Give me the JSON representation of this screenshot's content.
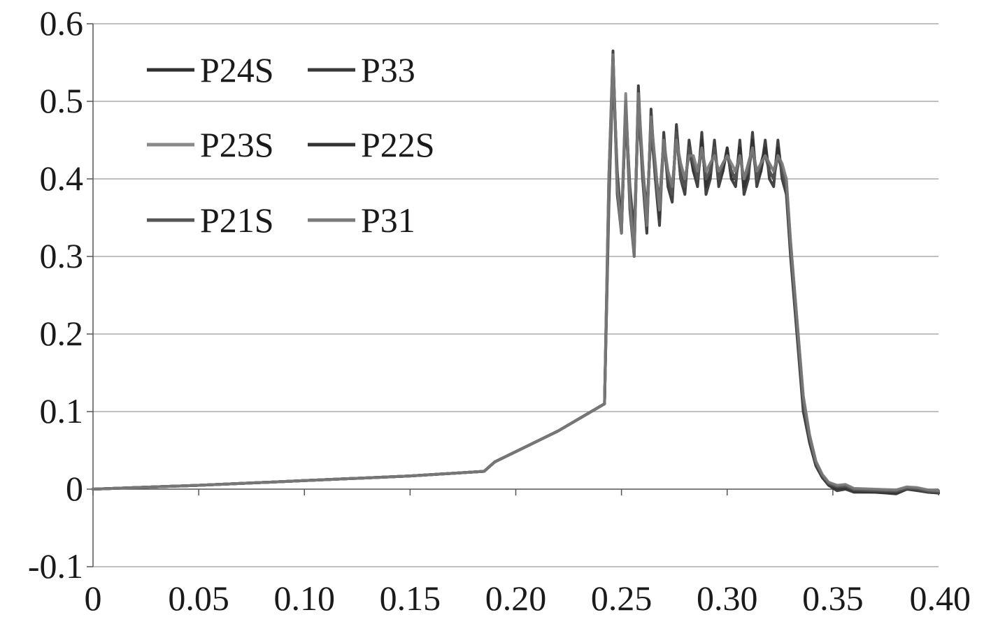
{
  "chart_data": {
    "type": "line",
    "title": "",
    "xlabel": "",
    "ylabel": "",
    "xlim": [
      0,
      0.4
    ],
    "ylim": [
      -0.1,
      0.6
    ],
    "grid": "horizontal",
    "legend_position": "top-left",
    "x_tick_labels": [
      "0",
      "0.05",
      "0.10",
      "0.15",
      "0.20",
      "0.25",
      "0.30",
      "0.35",
      "0.40"
    ],
    "x_ticks": [
      0,
      0.05,
      0.1,
      0.15,
      0.2,
      0.25,
      0.3,
      0.35,
      0.4
    ],
    "y_tick_labels": [
      "-0.1",
      "0",
      "0.1",
      "0.2",
      "0.3",
      "0.4",
      "0.5",
      "0.6"
    ],
    "y_ticks": [
      -0.1,
      0,
      0.1,
      0.2,
      0.3,
      0.4,
      0.5,
      0.6
    ],
    "colors": {
      "axis": "#555555",
      "grid": "#9a9a9a",
      "text": "#1a1a1a"
    },
    "series": [
      {
        "name": "P24S",
        "color": "#2f2f2f",
        "x": [
          0,
          0.05,
          0.1,
          0.15,
          0.185,
          0.19,
          0.22,
          0.242,
          0.244,
          0.246,
          0.248,
          0.25,
          0.252,
          0.254,
          0.256,
          0.258,
          0.26,
          0.262,
          0.264,
          0.266,
          0.268,
          0.27,
          0.272,
          0.274,
          0.276,
          0.278,
          0.28,
          0.282,
          0.284,
          0.286,
          0.288,
          0.29,
          0.292,
          0.294,
          0.296,
          0.298,
          0.3,
          0.302,
          0.304,
          0.306,
          0.308,
          0.31,
          0.312,
          0.314,
          0.316,
          0.318,
          0.32,
          0.322,
          0.324,
          0.326,
          0.328,
          0.33,
          0.333,
          0.336,
          0.339,
          0.342,
          0.345,
          0.348,
          0.352,
          0.356,
          0.36,
          0.37,
          0.38,
          0.385,
          0.39,
          0.395,
          0.4
        ],
        "y": [
          0,
          0.005,
          0.011,
          0.017,
          0.023,
          0.035,
          0.075,
          0.11,
          0.4,
          0.565,
          0.38,
          0.33,
          0.5,
          0.36,
          0.3,
          0.52,
          0.4,
          0.33,
          0.49,
          0.4,
          0.34,
          0.46,
          0.39,
          0.37,
          0.47,
          0.4,
          0.38,
          0.45,
          0.41,
          0.39,
          0.46,
          0.38,
          0.4,
          0.45,
          0.39,
          0.41,
          0.44,
          0.4,
          0.39,
          0.45,
          0.38,
          0.4,
          0.46,
          0.39,
          0.41,
          0.45,
          0.4,
          0.39,
          0.45,
          0.4,
          0.38,
          0.3,
          0.2,
          0.1,
          0.06,
          0.03,
          0.015,
          0.005,
          -0.002,
          0.0,
          -0.004,
          -0.004,
          -0.006,
          0.0,
          -0.002,
          -0.004,
          -0.005
        ]
      },
      {
        "name": "P33",
        "color": "#3a3a3a",
        "x": [
          0,
          0.05,
          0.1,
          0.15,
          0.185,
          0.19,
          0.22,
          0.242,
          0.244,
          0.246,
          0.248,
          0.25,
          0.252,
          0.254,
          0.256,
          0.258,
          0.26,
          0.262,
          0.264,
          0.266,
          0.268,
          0.27,
          0.272,
          0.274,
          0.276,
          0.278,
          0.28,
          0.282,
          0.284,
          0.286,
          0.288,
          0.29,
          0.292,
          0.294,
          0.296,
          0.298,
          0.3,
          0.302,
          0.304,
          0.306,
          0.308,
          0.31,
          0.312,
          0.314,
          0.316,
          0.318,
          0.32,
          0.322,
          0.324,
          0.326,
          0.328,
          0.33,
          0.333,
          0.336,
          0.339,
          0.342,
          0.345,
          0.348,
          0.352,
          0.356,
          0.36,
          0.37,
          0.38,
          0.385,
          0.39,
          0.395,
          0.4
        ],
        "y": [
          0,
          0.005,
          0.011,
          0.017,
          0.023,
          0.035,
          0.075,
          0.11,
          0.38,
          0.56,
          0.4,
          0.34,
          0.49,
          0.37,
          0.31,
          0.51,
          0.41,
          0.34,
          0.48,
          0.41,
          0.35,
          0.45,
          0.4,
          0.38,
          0.46,
          0.41,
          0.39,
          0.44,
          0.42,
          0.4,
          0.45,
          0.39,
          0.41,
          0.44,
          0.4,
          0.42,
          0.43,
          0.41,
          0.4,
          0.44,
          0.39,
          0.41,
          0.45,
          0.4,
          0.42,
          0.44,
          0.41,
          0.4,
          0.44,
          0.41,
          0.39,
          0.31,
          0.21,
          0.11,
          0.06,
          0.03,
          0.015,
          0.006,
          0.002,
          0.004,
          -0.002,
          -0.003,
          -0.004,
          0.001,
          0.0,
          -0.003,
          -0.004
        ]
      },
      {
        "name": "P23S",
        "color": "#8a8a8a",
        "x": [
          0,
          0.05,
          0.1,
          0.15,
          0.185,
          0.19,
          0.22,
          0.242,
          0.244,
          0.246,
          0.248,
          0.25,
          0.252,
          0.254,
          0.256,
          0.258,
          0.26,
          0.262,
          0.264,
          0.266,
          0.268,
          0.27,
          0.272,
          0.274,
          0.276,
          0.278,
          0.28,
          0.282,
          0.284,
          0.286,
          0.288,
          0.29,
          0.292,
          0.294,
          0.296,
          0.298,
          0.3,
          0.302,
          0.304,
          0.306,
          0.308,
          0.31,
          0.312,
          0.314,
          0.316,
          0.318,
          0.32,
          0.322,
          0.324,
          0.326,
          0.328,
          0.33,
          0.333,
          0.336,
          0.339,
          0.342,
          0.345,
          0.348,
          0.352,
          0.356,
          0.36,
          0.37,
          0.38,
          0.385,
          0.39,
          0.395,
          0.4
        ],
        "y": [
          0,
          0.005,
          0.011,
          0.017,
          0.023,
          0.035,
          0.075,
          0.11,
          0.39,
          0.55,
          0.39,
          0.35,
          0.5,
          0.38,
          0.32,
          0.5,
          0.42,
          0.35,
          0.47,
          0.42,
          0.36,
          0.44,
          0.41,
          0.39,
          0.45,
          0.42,
          0.4,
          0.43,
          0.42,
          0.41,
          0.44,
          0.4,
          0.42,
          0.43,
          0.41,
          0.42,
          0.43,
          0.41,
          0.41,
          0.43,
          0.4,
          0.42,
          0.44,
          0.41,
          0.42,
          0.43,
          0.42,
          0.41,
          0.43,
          0.41,
          0.4,
          0.32,
          0.22,
          0.12,
          0.07,
          0.035,
          0.018,
          0.008,
          0.004,
          0.005,
          0.0,
          -0.001,
          -0.002,
          0.002,
          0.001,
          -0.002,
          -0.003
        ]
      },
      {
        "name": "P22S",
        "color": "#333333",
        "x": [
          0,
          0.05,
          0.1,
          0.15,
          0.185,
          0.19,
          0.22,
          0.242,
          0.244,
          0.246,
          0.248,
          0.25,
          0.252,
          0.254,
          0.256,
          0.258,
          0.26,
          0.262,
          0.264,
          0.266,
          0.268,
          0.27,
          0.272,
          0.274,
          0.276,
          0.278,
          0.28,
          0.282,
          0.284,
          0.286,
          0.288,
          0.29,
          0.292,
          0.294,
          0.296,
          0.298,
          0.3,
          0.302,
          0.304,
          0.306,
          0.308,
          0.31,
          0.312,
          0.314,
          0.316,
          0.318,
          0.32,
          0.322,
          0.324,
          0.326,
          0.328,
          0.33,
          0.333,
          0.336,
          0.339,
          0.342,
          0.345,
          0.348,
          0.352,
          0.356,
          0.36,
          0.37,
          0.38,
          0.385,
          0.39,
          0.395,
          0.4
        ],
        "y": [
          0,
          0.005,
          0.011,
          0.017,
          0.023,
          0.035,
          0.075,
          0.11,
          0.37,
          0.54,
          0.41,
          0.34,
          0.49,
          0.39,
          0.33,
          0.49,
          0.41,
          0.36,
          0.46,
          0.41,
          0.37,
          0.45,
          0.4,
          0.38,
          0.46,
          0.4,
          0.39,
          0.44,
          0.41,
          0.4,
          0.45,
          0.39,
          0.41,
          0.44,
          0.4,
          0.41,
          0.44,
          0.4,
          0.4,
          0.44,
          0.39,
          0.41,
          0.45,
          0.4,
          0.41,
          0.44,
          0.41,
          0.4,
          0.44,
          0.41,
          0.39,
          0.31,
          0.21,
          0.11,
          0.065,
          0.032,
          0.016,
          0.006,
          0.001,
          0.003,
          -0.003,
          -0.004,
          -0.005,
          0.0,
          -0.001,
          -0.004,
          -0.005
        ]
      },
      {
        "name": "P21S",
        "color": "#555555",
        "x": [
          0,
          0.05,
          0.1,
          0.15,
          0.185,
          0.19,
          0.22,
          0.242,
          0.244,
          0.246,
          0.248,
          0.25,
          0.252,
          0.254,
          0.256,
          0.258,
          0.26,
          0.262,
          0.264,
          0.266,
          0.268,
          0.27,
          0.272,
          0.274,
          0.276,
          0.278,
          0.28,
          0.282,
          0.284,
          0.286,
          0.288,
          0.29,
          0.292,
          0.294,
          0.296,
          0.298,
          0.3,
          0.302,
          0.304,
          0.306,
          0.308,
          0.31,
          0.312,
          0.314,
          0.316,
          0.318,
          0.32,
          0.322,
          0.324,
          0.326,
          0.328,
          0.33,
          0.333,
          0.336,
          0.339,
          0.342,
          0.345,
          0.348,
          0.352,
          0.356,
          0.36,
          0.37,
          0.38,
          0.385,
          0.39,
          0.395,
          0.4
        ],
        "y": [
          0,
          0.005,
          0.011,
          0.017,
          0.023,
          0.035,
          0.075,
          0.11,
          0.36,
          0.55,
          0.4,
          0.33,
          0.5,
          0.38,
          0.31,
          0.5,
          0.4,
          0.35,
          0.47,
          0.4,
          0.36,
          0.45,
          0.4,
          0.38,
          0.46,
          0.4,
          0.39,
          0.44,
          0.42,
          0.4,
          0.44,
          0.4,
          0.41,
          0.44,
          0.4,
          0.42,
          0.43,
          0.41,
          0.4,
          0.43,
          0.4,
          0.41,
          0.44,
          0.4,
          0.42,
          0.43,
          0.41,
          0.4,
          0.43,
          0.41,
          0.39,
          0.31,
          0.21,
          0.11,
          0.065,
          0.033,
          0.017,
          0.007,
          0.003,
          0.004,
          -0.001,
          -0.002,
          -0.003,
          0.001,
          0.0,
          -0.003,
          -0.004
        ]
      },
      {
        "name": "P31",
        "color": "#7a7a7a",
        "x": [
          0,
          0.05,
          0.1,
          0.15,
          0.185,
          0.19,
          0.22,
          0.242,
          0.244,
          0.246,
          0.248,
          0.25,
          0.252,
          0.254,
          0.256,
          0.258,
          0.26,
          0.262,
          0.264,
          0.266,
          0.268,
          0.27,
          0.272,
          0.274,
          0.276,
          0.278,
          0.28,
          0.282,
          0.284,
          0.286,
          0.288,
          0.29,
          0.292,
          0.294,
          0.296,
          0.298,
          0.3,
          0.302,
          0.304,
          0.306,
          0.308,
          0.31,
          0.312,
          0.314,
          0.316,
          0.318,
          0.32,
          0.322,
          0.324,
          0.326,
          0.328,
          0.33,
          0.333,
          0.336,
          0.339,
          0.342,
          0.345,
          0.348,
          0.352,
          0.356,
          0.36,
          0.37,
          0.38,
          0.385,
          0.39,
          0.395,
          0.4
        ],
        "y": [
          0,
          0.005,
          0.011,
          0.017,
          0.023,
          0.035,
          0.075,
          0.11,
          0.4,
          0.56,
          0.39,
          0.33,
          0.51,
          0.37,
          0.3,
          0.51,
          0.42,
          0.34,
          0.48,
          0.42,
          0.36,
          0.45,
          0.41,
          0.39,
          0.45,
          0.42,
          0.4,
          0.43,
          0.43,
          0.41,
          0.44,
          0.41,
          0.42,
          0.43,
          0.41,
          0.42,
          0.43,
          0.42,
          0.41,
          0.43,
          0.4,
          0.42,
          0.44,
          0.41,
          0.42,
          0.43,
          0.42,
          0.41,
          0.43,
          0.42,
          0.4,
          0.32,
          0.22,
          0.12,
          0.07,
          0.036,
          0.019,
          0.009,
          0.005,
          0.006,
          0.001,
          0.0,
          -0.001,
          0.003,
          0.002,
          -0.001,
          -0.002
        ]
      }
    ]
  }
}
